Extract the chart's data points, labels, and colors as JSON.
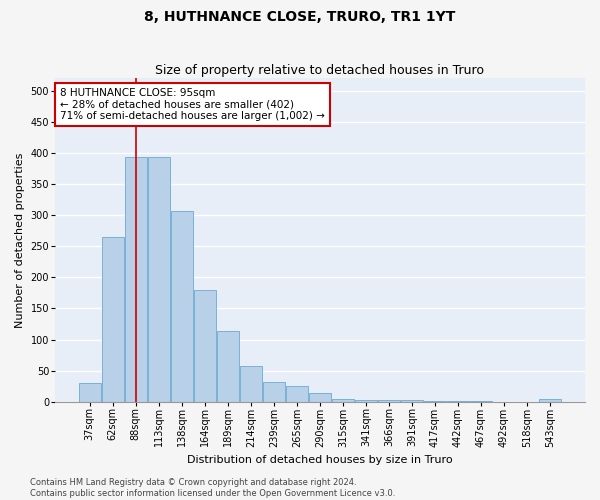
{
  "title": "8, HUTHNANCE CLOSE, TRURO, TR1 1YT",
  "subtitle": "Size of property relative to detached houses in Truro",
  "xlabel": "Distribution of detached houses by size in Truro",
  "ylabel": "Number of detached properties",
  "categories": [
    "37sqm",
    "62sqm",
    "88sqm",
    "113sqm",
    "138sqm",
    "164sqm",
    "189sqm",
    "214sqm",
    "239sqm",
    "265sqm",
    "290sqm",
    "315sqm",
    "341sqm",
    "366sqm",
    "391sqm",
    "417sqm",
    "442sqm",
    "467sqm",
    "492sqm",
    "518sqm",
    "543sqm"
  ],
  "values": [
    30,
    265,
    393,
    393,
    307,
    180,
    113,
    58,
    32,
    25,
    14,
    5,
    2,
    2,
    2,
    1,
    1,
    1,
    0,
    0,
    4
  ],
  "bar_color": "#b8d0e8",
  "bar_edge_color": "#6aaad4",
  "bar_linewidth": 0.6,
  "vline_x_index": 2,
  "vline_color": "#cc0000",
  "annotation_text": "8 HUTHNANCE CLOSE: 95sqm\n← 28% of detached houses are smaller (402)\n71% of semi-detached houses are larger (1,002) →",
  "annotation_box_facecolor": "#ffffff",
  "annotation_box_edgecolor": "#cc0000",
  "ylim": [
    0,
    520
  ],
  "yticks": [
    0,
    50,
    100,
    150,
    200,
    250,
    300,
    350,
    400,
    450,
    500
  ],
  "plot_bg_color": "#e8eef8",
  "grid_color": "#ffffff",
  "fig_bg_color": "#f5f5f5",
  "title_fontsize": 10,
  "subtitle_fontsize": 9,
  "axis_label_fontsize": 8,
  "tick_fontsize": 7,
  "annotation_fontsize": 7.5,
  "footer_text": "Contains HM Land Registry data © Crown copyright and database right 2024.\nContains public sector information licensed under the Open Government Licence v3.0.",
  "footer_fontsize": 6
}
